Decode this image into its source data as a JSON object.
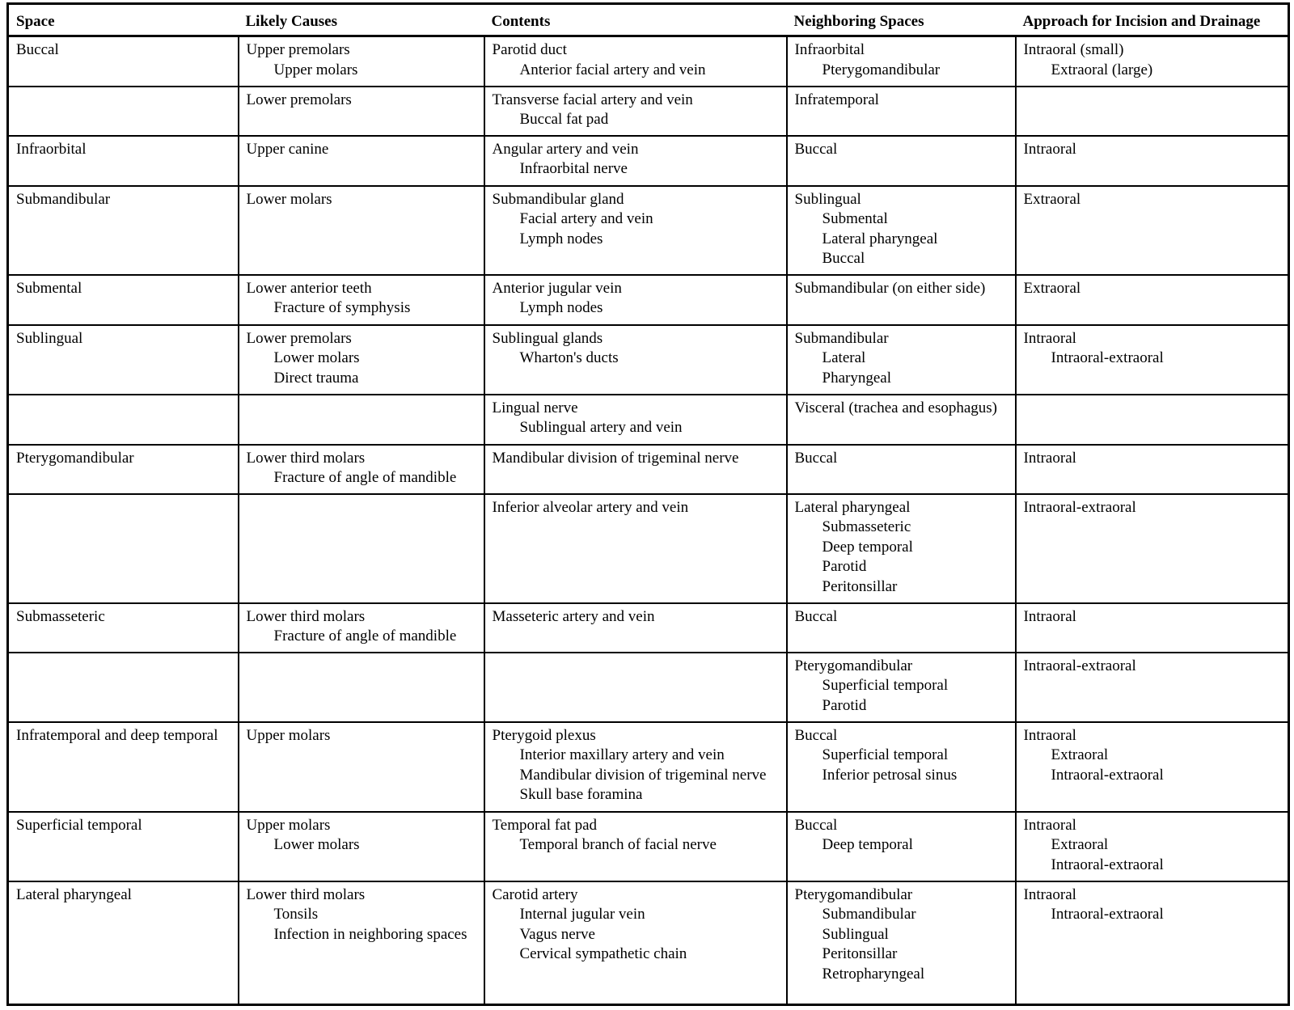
{
  "table": {
    "headers": [
      "Space",
      "Likely Causes",
      "Contents",
      "Neighboring Spaces",
      "Approach for Incision and Drainage"
    ],
    "rows": [
      {
        "space": [
          "Buccal"
        ],
        "likely_causes": [
          "Upper premolars",
          "Upper molars"
        ],
        "contents": [
          "Parotid duct",
          "Anterior facial artery and vein"
        ],
        "neighboring_spaces": [
          "Infraorbital",
          "Pterygomandibular"
        ],
        "approach": [
          "Intraoral (small)",
          "Extraoral (large)"
        ]
      },
      {
        "space": [],
        "likely_causes": [
          "Lower premolars"
        ],
        "contents": [
          "Transverse facial artery and vein",
          "Buccal fat pad"
        ],
        "neighboring_spaces": [
          "Infratemporal"
        ],
        "approach": []
      },
      {
        "space": [
          "Infraorbital"
        ],
        "likely_causes": [
          "Upper canine"
        ],
        "contents": [
          "Angular artery and vein",
          "Infraorbital nerve"
        ],
        "neighboring_spaces": [
          "Buccal"
        ],
        "approach": [
          "Intraoral"
        ]
      },
      {
        "space": [
          "Submandibular"
        ],
        "likely_causes": [
          "Lower molars"
        ],
        "contents": [
          "Submandibular gland",
          "Facial artery and vein",
          "Lymph nodes"
        ],
        "neighboring_spaces": [
          "Sublingual",
          "Submental",
          "Lateral pharyngeal",
          "Buccal"
        ],
        "approach": [
          "Extraoral"
        ]
      },
      {
        "space": [
          "Submental"
        ],
        "likely_causes": [
          "Lower anterior teeth",
          "Fracture of symphysis"
        ],
        "contents": [
          "Anterior jugular vein",
          "Lymph nodes"
        ],
        "neighboring_spaces": [
          "Submandibular (on either side)"
        ],
        "approach": [
          "Extraoral"
        ]
      },
      {
        "space": [
          "Sublingual"
        ],
        "likely_causes": [
          "Lower premolars",
          "Lower molars",
          "Direct trauma"
        ],
        "contents": [
          "Sublingual glands",
          "Wharton's ducts"
        ],
        "neighboring_spaces": [
          "Submandibular",
          "Lateral",
          "Pharyngeal"
        ],
        "approach": [
          "Intraoral",
          "Intraoral-extraoral"
        ]
      },
      {
        "space": [],
        "likely_causes": [],
        "contents": [
          "Lingual nerve",
          "Sublingual artery and vein"
        ],
        "neighboring_spaces": [
          "Visceral (trachea and esophagus)"
        ],
        "approach": []
      },
      {
        "space": [
          "Pterygomandibular"
        ],
        "likely_causes": [
          "Lower third molars",
          "Fracture of angle of mandible"
        ],
        "contents": [
          "Mandibular division of trigeminal nerve"
        ],
        "neighboring_spaces": [
          "Buccal"
        ],
        "approach": [
          "Intraoral"
        ]
      },
      {
        "space": [],
        "likely_causes": [],
        "contents": [
          "Inferior alveolar artery and vein"
        ],
        "neighboring_spaces": [
          "Lateral pharyngeal",
          "Submasseteric",
          "Deep temporal",
          "Parotid",
          "Peritonsillar"
        ],
        "approach": [
          "Intraoral-extraoral"
        ]
      },
      {
        "space": [
          "Submasseteric"
        ],
        "likely_causes": [
          "Lower third molars",
          "Fracture of angle of mandible"
        ],
        "contents": [
          "Masseteric artery and vein"
        ],
        "neighboring_spaces": [
          "Buccal"
        ],
        "approach": [
          "Intraoral"
        ]
      },
      {
        "space": [],
        "likely_causes": [],
        "contents": [],
        "neighboring_spaces": [
          "Pterygomandibular",
          "Superficial temporal",
          "Parotid"
        ],
        "approach": [
          "Intraoral-extraoral"
        ]
      },
      {
        "space": [
          "Infratemporal and deep temporal"
        ],
        "likely_causes": [
          "Upper molars"
        ],
        "contents": [
          "Pterygoid plexus",
          "Interior maxillary artery and vein",
          "Mandibular division of trigeminal nerve",
          "Skull base foramina"
        ],
        "neighboring_spaces": [
          "Buccal",
          "Superficial temporal",
          "Inferior petrosal sinus"
        ],
        "approach": [
          "Intraoral",
          "Extraoral",
          "Intraoral-extraoral"
        ]
      },
      {
        "space": [
          "Superficial temporal"
        ],
        "likely_causes": [
          "Upper molars",
          "Lower molars"
        ],
        "contents": [
          "Temporal fat pad",
          "Temporal branch of facial nerve"
        ],
        "neighboring_spaces": [
          "Buccal",
          "Deep temporal"
        ],
        "approach": [
          "Intraoral",
          "Extraoral",
          "Intraoral-extraoral"
        ]
      },
      {
        "space": [
          "Lateral pharyngeal"
        ],
        "likely_causes": [
          "Lower third molars",
          "Tonsils",
          "Infection in neighboring spaces"
        ],
        "contents": [
          "Carotid artery",
          "Internal jugular vein",
          "Vagus nerve",
          "Cervical sympathetic chain"
        ],
        "neighboring_spaces": [
          "Pterygomandibular",
          "Submandibular",
          "Sublingual",
          "Peritonsillar",
          "Retropharyngeal"
        ],
        "approach": [
          "Intraoral",
          "Intraoral-extraoral"
        ]
      }
    ]
  },
  "colors": {
    "text": "#000000",
    "border": "#000000",
    "background": "#ffffff"
  }
}
